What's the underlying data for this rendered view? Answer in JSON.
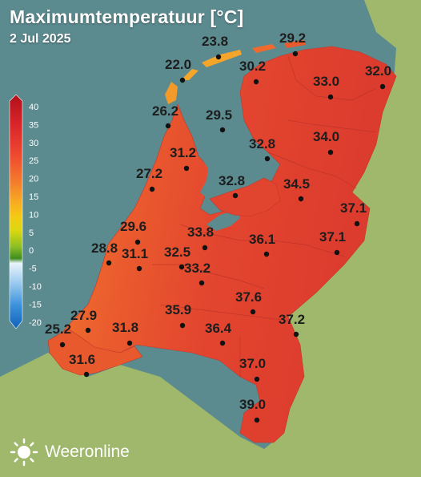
{
  "header": {
    "title": "Maximumtemperatuur [°C]",
    "date": "2 Jul 2025"
  },
  "brand": {
    "name": "Weeronline",
    "icon": "sun-logo-icon"
  },
  "legend": {
    "ticks": [
      "40",
      "35",
      "30",
      "25",
      "20",
      "15",
      "10",
      "5",
      "0",
      "-5",
      "-10",
      "-15",
      "-20"
    ],
    "colors": [
      "#b0101a",
      "#d8232a",
      "#ee4630",
      "#f47a2c",
      "#f8a623",
      "#f5c915",
      "#dcd80f",
      "#8cbf25",
      "#3f8d1f",
      "#cfe7f5",
      "#6fb4ea",
      "#2a84d8",
      "#1262b8"
    ]
  },
  "colors": {
    "sea": "#5b8a8f",
    "neighbour_land": "#9fb86b",
    "land_hot": "#e2452f",
    "land_warm": "#f07a2c",
    "land_cool": "#f5a62a",
    "text": "#1d1d1d"
  },
  "readings": [
    {
      "value": "23.8"
    },
    {
      "value": "29.2"
    },
    {
      "value": "22.0"
    },
    {
      "value": "30.2"
    },
    {
      "value": "33.0"
    },
    {
      "value": "32.0"
    },
    {
      "value": "26.2"
    },
    {
      "value": "29.5"
    },
    {
      "value": "34.0"
    },
    {
      "value": "31.2"
    },
    {
      "value": "32.8"
    },
    {
      "value": "27.2"
    },
    {
      "value": "32.8"
    },
    {
      "value": "34.5"
    },
    {
      "value": "37.1"
    },
    {
      "value": "29.6"
    },
    {
      "value": "33.8"
    },
    {
      "value": "36.1"
    },
    {
      "value": "37.1"
    },
    {
      "value": "28.8"
    },
    {
      "value": "31.1"
    },
    {
      "value": "32.5"
    },
    {
      "value": "33.2"
    },
    {
      "value": "37.6"
    },
    {
      "value": "27.9"
    },
    {
      "value": "35.9"
    },
    {
      "value": "37.2"
    },
    {
      "value": "25.2"
    },
    {
      "value": "31.8"
    },
    {
      "value": "36.4"
    },
    {
      "value": "31.6"
    },
    {
      "value": "37.0"
    },
    {
      "value": "39.0"
    }
  ]
}
